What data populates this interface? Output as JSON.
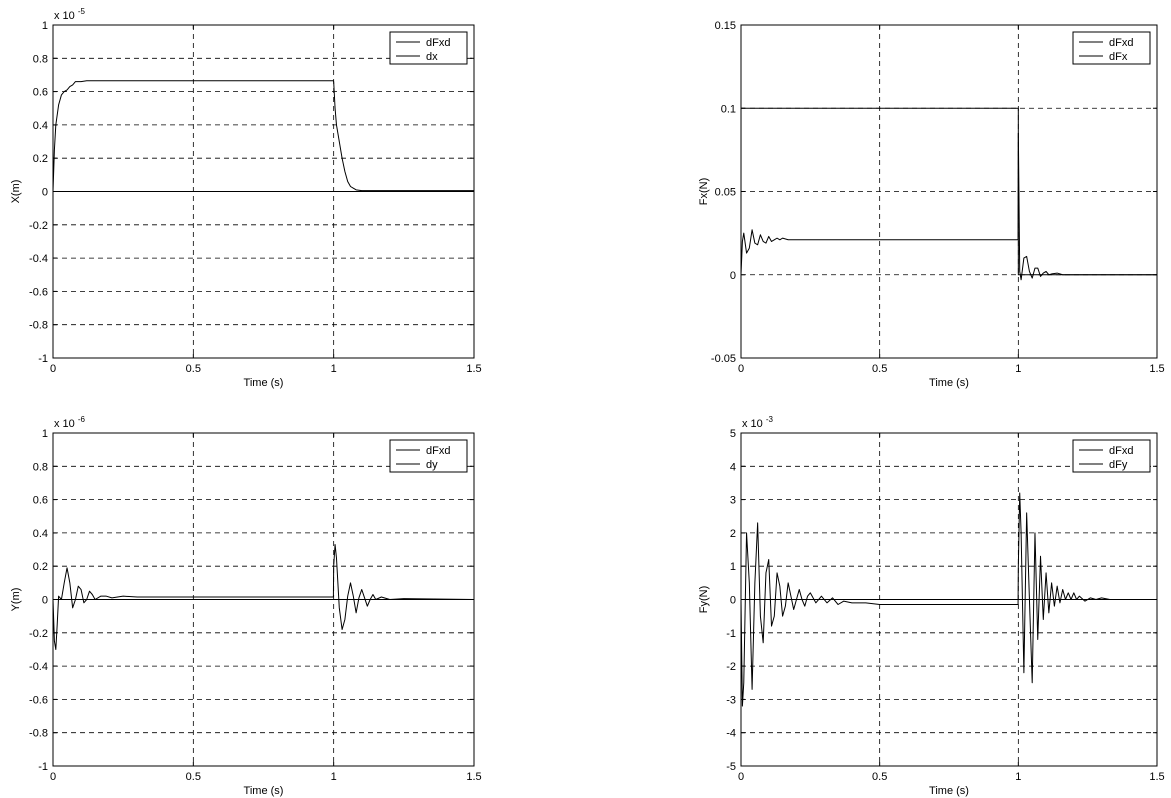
{
  "chart_data": [
    {
      "type": "line",
      "xlabel": "Time (s)",
      "ylabel": "X(m)",
      "multiplier_label": "x 10",
      "multiplier_exponent": "-5",
      "xlim": [
        0,
        1.5
      ],
      "ylim": [
        -1,
        1
      ],
      "x_ticks": [
        0,
        0.5,
        1,
        1.5
      ],
      "x_tick_labels": [
        "0",
        "0.5",
        "1",
        "1.5"
      ],
      "y_ticks": [
        -1,
        -0.8,
        -0.6,
        -0.4,
        -0.2,
        0,
        0.2,
        0.4,
        0.6,
        0.8,
        1
      ],
      "y_tick_labels": [
        "-1",
        "-0.8",
        "-0.6",
        "-0.4",
        "-0.2",
        "0",
        "0.2",
        "0.4",
        "0.6",
        "0.8",
        "1"
      ],
      "grid": true,
      "legend_position": "top-right",
      "series": [
        {
          "name": "dFxd",
          "x": [
            0,
            1.5
          ],
          "y": [
            0,
            0
          ]
        },
        {
          "name": "dx",
          "x": [
            0,
            0.005,
            0.01,
            0.02,
            0.03,
            0.04,
            0.05,
            0.06,
            0.07,
            0.08,
            0.1,
            0.12,
            0.15,
            0.2,
            0.5,
            0.999,
            1.0,
            1.005,
            1.01,
            1.02,
            1.03,
            1.04,
            1.05,
            1.06,
            1.07,
            1.08,
            1.1,
            1.15,
            1.2,
            1.5
          ],
          "y": [
            0,
            0.25,
            0.4,
            0.52,
            0.58,
            0.6,
            0.61,
            0.63,
            0.64,
            0.66,
            0.66,
            0.665,
            0.665,
            0.665,
            0.665,
            0.665,
            0.66,
            0.5,
            0.4,
            0.3,
            0.2,
            0.12,
            0.06,
            0.03,
            0.02,
            0.01,
            0.005,
            0.005,
            0.005,
            0.005
          ]
        }
      ]
    },
    {
      "type": "line",
      "xlabel": "Time (s)",
      "ylabel": "Fx(N)",
      "multiplier_label": "",
      "multiplier_exponent": "",
      "xlim": [
        0,
        1.5
      ],
      "ylim": [
        -0.05,
        0.15
      ],
      "x_ticks": [
        0,
        0.5,
        1,
        1.5
      ],
      "x_tick_labels": [
        "0",
        "0.5",
        "1",
        "1.5"
      ],
      "y_ticks": [
        -0.05,
        0,
        0.05,
        0.1,
        0.15
      ],
      "y_tick_labels": [
        "-0.05",
        "0",
        "0.05",
        "0.1",
        "0.15"
      ],
      "grid": true,
      "legend_position": "top-right",
      "series": [
        {
          "name": "dFxd",
          "x": [
            0,
            0.0001,
            0.9999,
            1.0,
            1.5
          ],
          "y": [
            0,
            0.1,
            0.1,
            0,
            0
          ]
        },
        {
          "name": "dFx",
          "x": [
            0,
            0.005,
            0.01,
            0.02,
            0.03,
            0.04,
            0.05,
            0.06,
            0.07,
            0.08,
            0.09,
            0.1,
            0.11,
            0.12,
            0.13,
            0.14,
            0.15,
            0.17,
            0.2,
            0.5,
            0.999,
            1.0,
            1.005,
            1.01,
            1.02,
            1.03,
            1.04,
            1.05,
            1.06,
            1.07,
            1.08,
            1.09,
            1.1,
            1.11,
            1.12,
            1.14,
            1.16,
            1.2,
            1.5
          ],
          "y": [
            0,
            0.02,
            0.025,
            0.013,
            0.016,
            0.027,
            0.019,
            0.018,
            0.024,
            0.02,
            0.019,
            0.023,
            0.02,
            0.021,
            0.022,
            0.021,
            0.022,
            0.021,
            0.021,
            0.021,
            0.021,
            0.085,
            0.002,
            -0.003,
            0.01,
            0.011,
            0.002,
            -0.002,
            0.004,
            0.004,
            -0.001,
            0.001,
            0.002,
            0,
            0.0005,
            0.001,
            0,
            0,
            0
          ]
        }
      ]
    },
    {
      "type": "line",
      "xlabel": "Time (s)",
      "ylabel": "Y(m)",
      "multiplier_label": "x 10",
      "multiplier_exponent": "-6",
      "xlim": [
        0,
        1.5
      ],
      "ylim": [
        -1,
        1
      ],
      "x_ticks": [
        0,
        0.5,
        1,
        1.5
      ],
      "x_tick_labels": [
        "0",
        "0.5",
        "1",
        "1.5"
      ],
      "y_ticks": [
        -1,
        -0.8,
        -0.6,
        -0.4,
        -0.2,
        0,
        0.2,
        0.4,
        0.6,
        0.8,
        1
      ],
      "y_tick_labels": [
        "-1",
        "-0.8",
        "-0.6",
        "-0.4",
        "-0.2",
        "0",
        "0.2",
        "0.4",
        "0.6",
        "0.8",
        "1"
      ],
      "grid": true,
      "legend_position": "top-right",
      "series": [
        {
          "name": "dFxd",
          "x": [
            0,
            1.5
          ],
          "y": [
            0,
            0
          ]
        },
        {
          "name": "dy",
          "x": [
            0,
            0.005,
            0.01,
            0.015,
            0.02,
            0.03,
            0.04,
            0.05,
            0.06,
            0.07,
            0.08,
            0.09,
            0.1,
            0.11,
            0.12,
            0.13,
            0.14,
            0.15,
            0.17,
            0.19,
            0.21,
            0.25,
            0.3,
            0.35,
            0.999,
            1.0,
            1.005,
            1.01,
            1.02,
            1.03,
            1.04,
            1.05,
            1.06,
            1.07,
            1.08,
            1.09,
            1.1,
            1.11,
            1.12,
            1.13,
            1.14,
            1.15,
            1.17,
            1.2,
            1.25,
            1.5
          ],
          "y": [
            0,
            -0.25,
            -0.3,
            -0.15,
            0.02,
            0.0,
            0.1,
            0.19,
            0.1,
            -0.05,
            0.0,
            0.08,
            0.06,
            -0.02,
            0.0,
            0.05,
            0.03,
            0.0,
            0.02,
            0.02,
            0.01,
            0.02,
            0.015,
            0.015,
            0.015,
            0.2,
            0.33,
            0.25,
            -0.05,
            -0.18,
            -0.12,
            0.02,
            0.1,
            0.02,
            -0.08,
            0.01,
            0.06,
            0.01,
            -0.04,
            0.0,
            0.03,
            0.0,
            0.015,
            0.0,
            0.005,
            0
          ]
        }
      ]
    },
    {
      "type": "line",
      "xlabel": "Time (s)",
      "ylabel": "Fy(N)",
      "multiplier_label": "x 10",
      "multiplier_exponent": "-3",
      "xlim": [
        0,
        1.5
      ],
      "ylim": [
        -5,
        5
      ],
      "x_ticks": [
        0,
        0.5,
        1,
        1.5
      ],
      "x_tick_labels": [
        "0",
        "0.5",
        "1",
        "1.5"
      ],
      "y_ticks": [
        -5,
        -4,
        -3,
        -2,
        -1,
        0,
        1,
        2,
        3,
        4,
        5
      ],
      "y_tick_labels": [
        "-5",
        "-4",
        "-3",
        "-2",
        "-1",
        "0",
        "1",
        "2",
        "3",
        "4",
        "5"
      ],
      "grid": true,
      "legend_position": "top-right",
      "series": [
        {
          "name": "dFxd",
          "x": [
            0,
            1.5
          ],
          "y": [
            0,
            0
          ]
        },
        {
          "name": "dFy",
          "x": [
            0,
            0.005,
            0.01,
            0.02,
            0.03,
            0.04,
            0.05,
            0.06,
            0.07,
            0.08,
            0.09,
            0.1,
            0.11,
            0.12,
            0.13,
            0.14,
            0.15,
            0.16,
            0.17,
            0.18,
            0.19,
            0.2,
            0.21,
            0.22,
            0.23,
            0.24,
            0.25,
            0.27,
            0.29,
            0.31,
            0.33,
            0.35,
            0.37,
            0.4,
            0.45,
            0.5,
            0.999,
            1.0,
            1.005,
            1.01,
            1.02,
            1.03,
            1.04,
            1.05,
            1.06,
            1.07,
            1.08,
            1.09,
            1.1,
            1.11,
            1.12,
            1.13,
            1.14,
            1.15,
            1.16,
            1.17,
            1.18,
            1.19,
            1.2,
            1.21,
            1.22,
            1.24,
            1.26,
            1.28,
            1.3,
            1.33,
            1.36,
            1.4,
            1.45,
            1.5
          ],
          "y": [
            0,
            -3.2,
            -2.5,
            2.0,
            0.5,
            -2.7,
            0.5,
            2.3,
            -0.5,
            -1.3,
            0.8,
            1.2,
            -0.8,
            -0.5,
            0.8,
            0.4,
            -0.5,
            -0.2,
            0.5,
            0.1,
            -0.3,
            0.0,
            0.3,
            0.0,
            -0.2,
            0.1,
            0.2,
            -0.1,
            0.1,
            -0.1,
            0.05,
            -0.15,
            -0.05,
            -0.1,
            -0.1,
            -0.15,
            -0.15,
            1.0,
            3.2,
            2.0,
            -2.2,
            2.6,
            0.0,
            -2.5,
            2.0,
            -1.2,
            1.3,
            -0.6,
            0.8,
            -0.4,
            0.5,
            -0.2,
            0.4,
            -0.1,
            0.3,
            0.0,
            0.2,
            0.0,
            0.2,
            0.0,
            0.1,
            -0.05,
            0.05,
            0.0,
            0.05,
            0.0,
            0.0,
            0.0,
            0.0,
            0.0
          ]
        }
      ]
    }
  ]
}
